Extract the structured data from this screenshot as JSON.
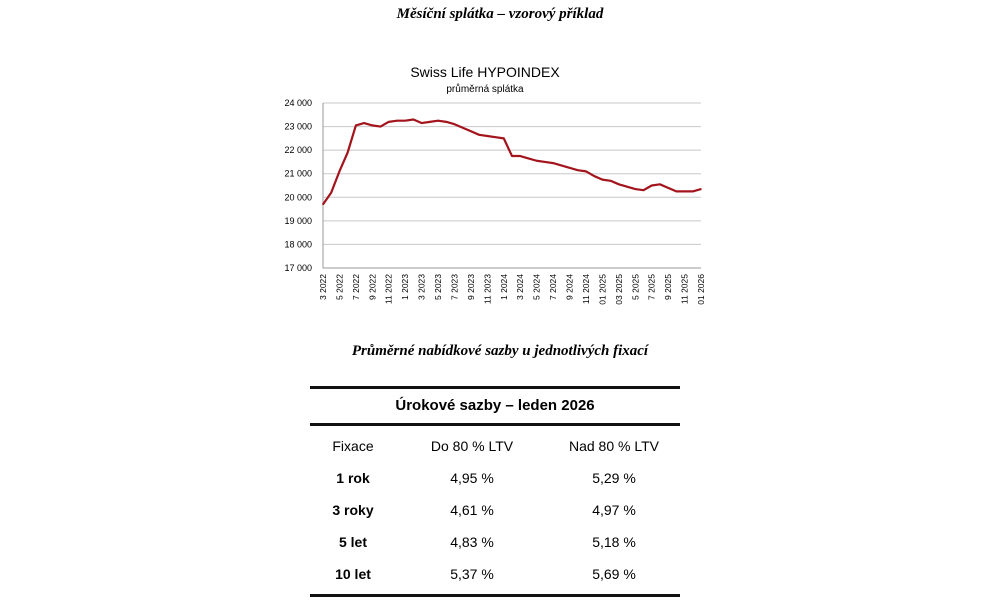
{
  "heading_top": "Měsíční splátka – vzorový příklad",
  "heading_table": "Průměrné nabídkové sazby u jednotlivých fixací",
  "chart_data": {
    "type": "line",
    "title": "Swiss Life HYPOINDEX",
    "subtitle": "průměrná splátka",
    "xlabel": "",
    "ylabel": "",
    "ylim": [
      17000,
      24000
    ],
    "yticks": [
      17000,
      18000,
      19000,
      20000,
      21000,
      22000,
      23000,
      24000
    ],
    "ytick_labels": [
      "17 000",
      "18 000",
      "19 000",
      "20 000",
      "21 000",
      "22 000",
      "23 000",
      "24 000"
    ],
    "xtick_labels": [
      "3 2022",
      "5 2022",
      "7 2022",
      "9 2022",
      "11 2022",
      "1 2023",
      "3 2023",
      "5 2023",
      "7 2023",
      "9 2023",
      "11 2023",
      "1 2024",
      "3 2024",
      "5 2024",
      "7 2024",
      "9 2024",
      "11 2024",
      "01 2025",
      "03 2025",
      "5 2025",
      "7 2025",
      "9 2025",
      "11 2025",
      "01 2026"
    ],
    "grid": true,
    "legend": "none",
    "color": "#a3141c",
    "series": [
      {
        "name": "průměrná splátka",
        "values": [
          19700,
          20200,
          21100,
          21900,
          23050,
          23150,
          23050,
          23000,
          23200,
          23250,
          23250,
          23300,
          23150,
          23200,
          23250,
          23200,
          23100,
          22950,
          22800,
          22650,
          22600,
          22550,
          22500,
          21750,
          21750,
          21650,
          21550,
          21500,
          21450,
          21350,
          21250,
          21150,
          21100,
          20900,
          20750,
          20700,
          20550,
          20450,
          20350,
          20300,
          20500,
          20550,
          20400,
          20250,
          20250,
          20250,
          20350
        ]
      }
    ]
  },
  "table": {
    "title": "Úrokové sazby – leden 2026",
    "headers": [
      "Fixace",
      "Do 80 % LTV",
      "Nad 80 % LTV"
    ],
    "rows": [
      [
        "1 rok",
        "4,95 %",
        "5,29 %"
      ],
      [
        "3 roky",
        "4,61 %",
        "4,97 %"
      ],
      [
        "5 let",
        "4,83 %",
        "5,18 %"
      ],
      [
        "10 let",
        "5,37 %",
        "5,69 %"
      ]
    ]
  }
}
